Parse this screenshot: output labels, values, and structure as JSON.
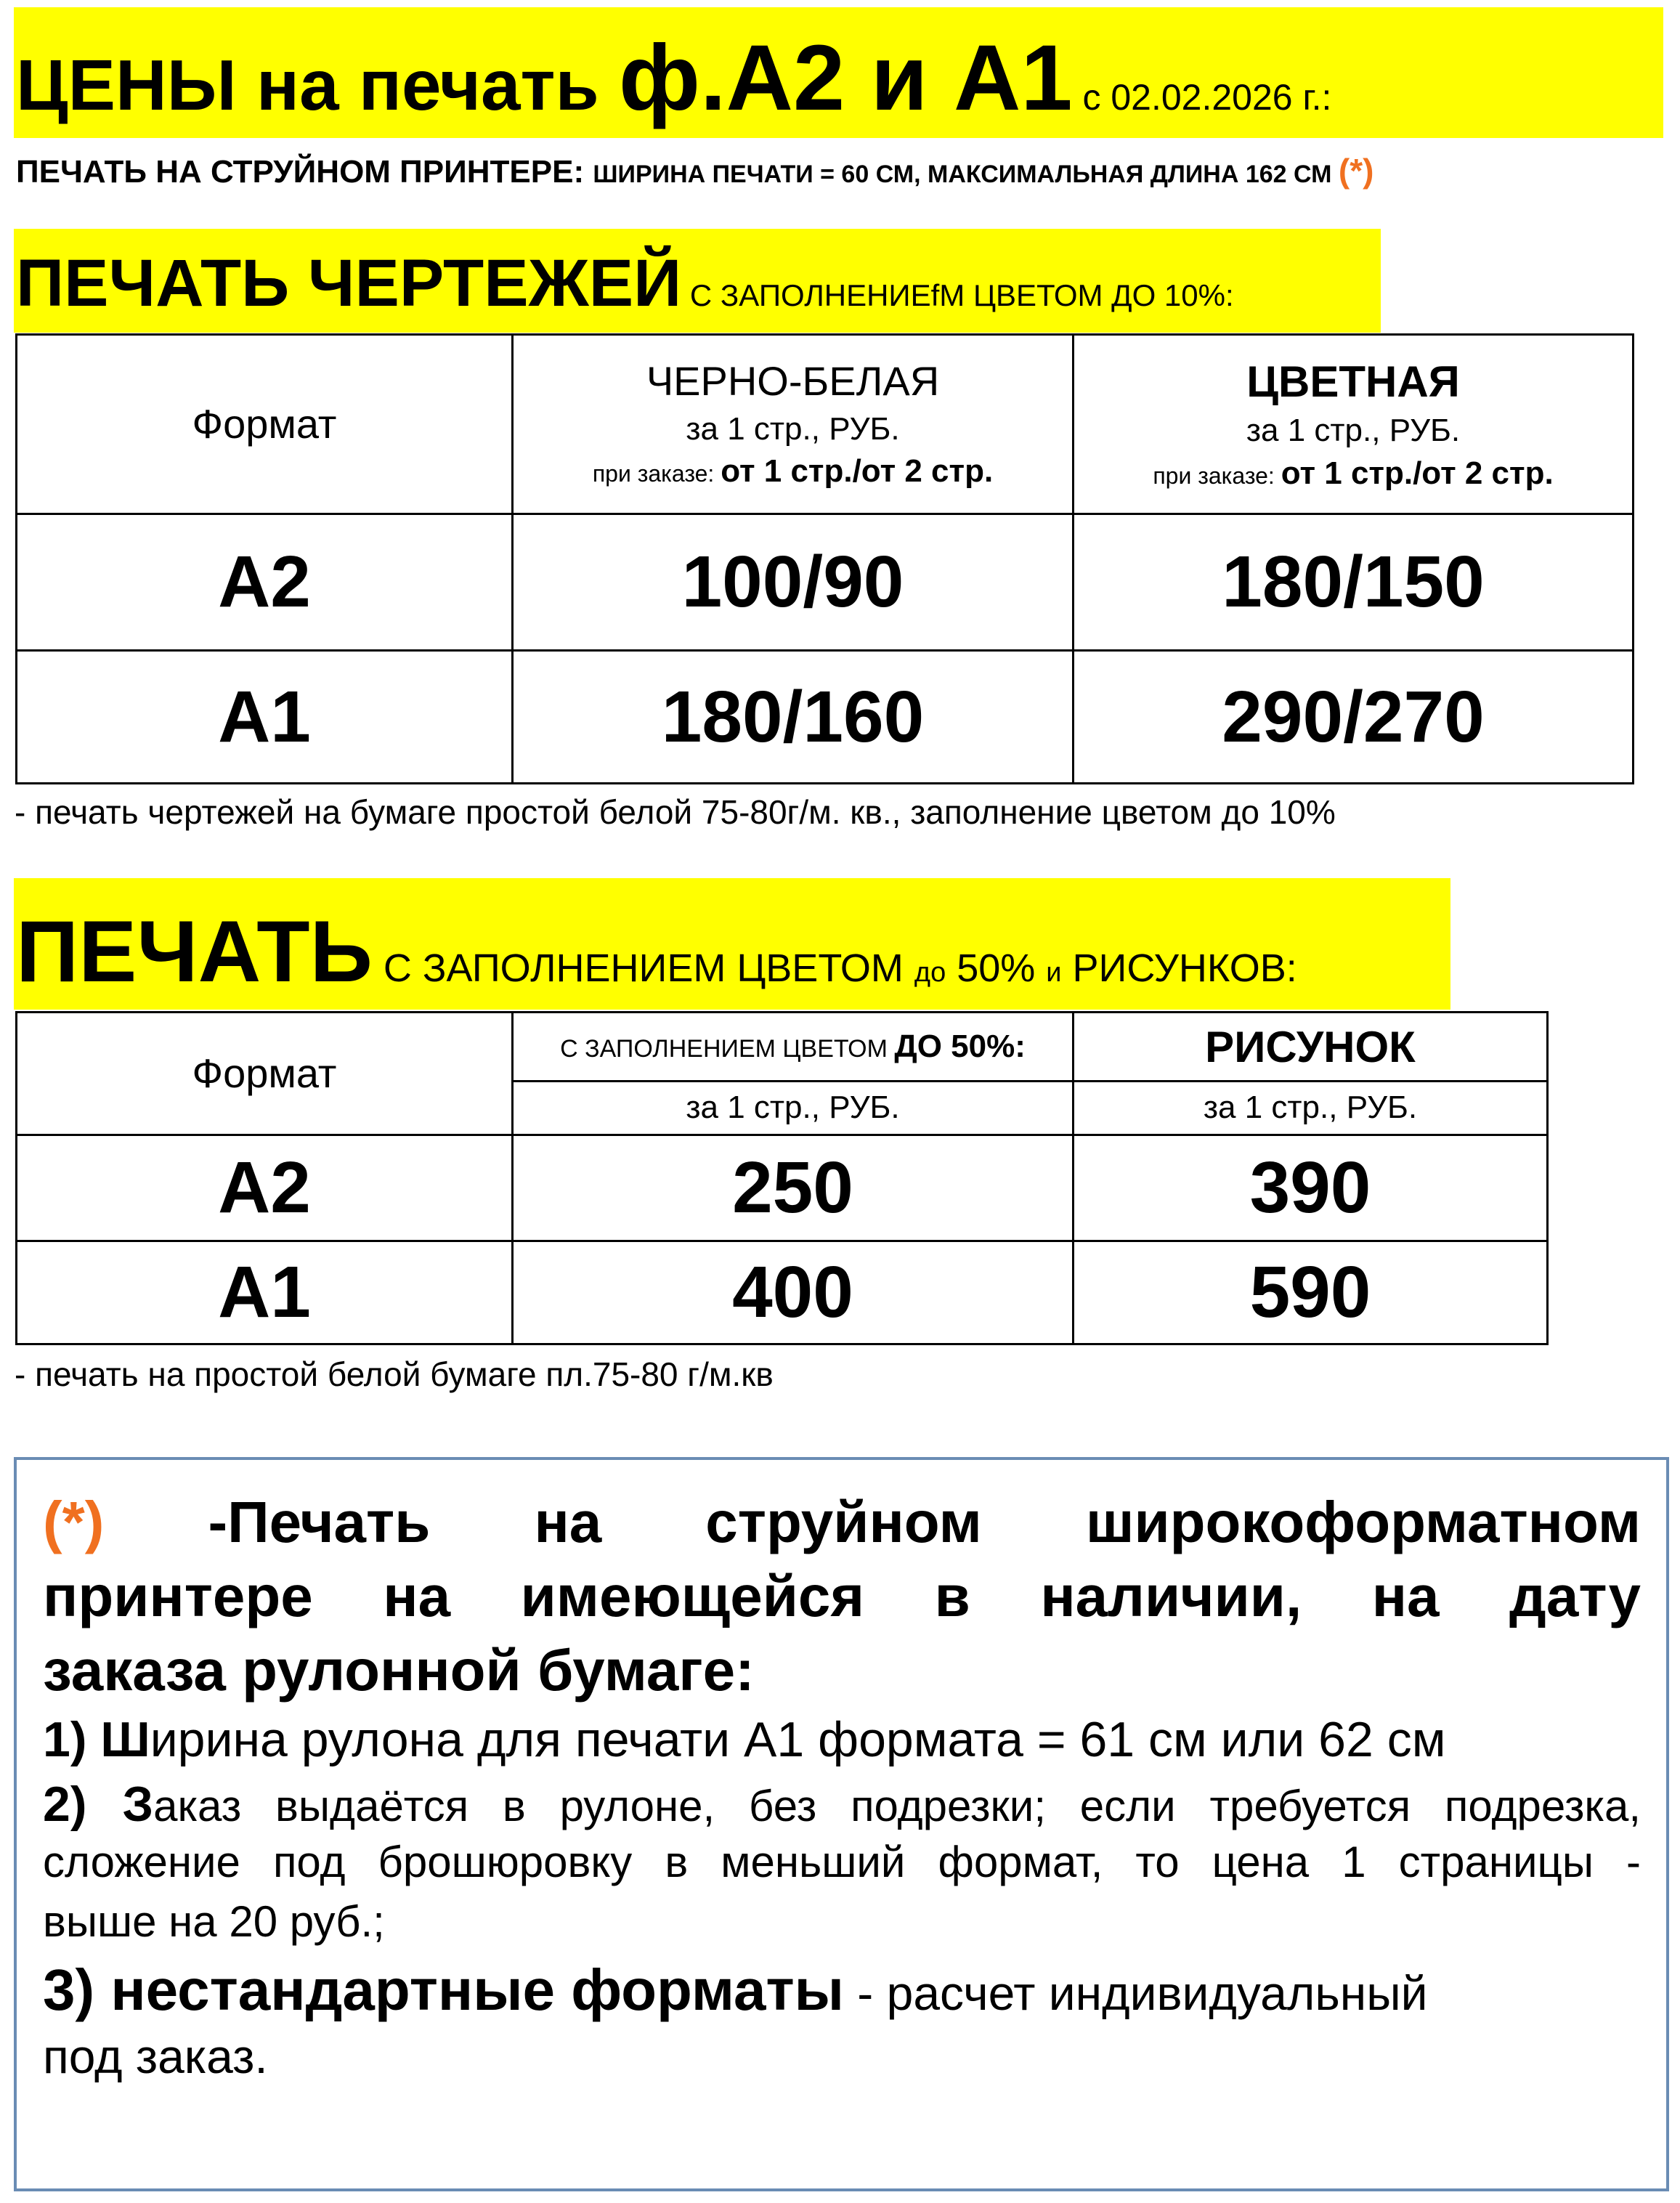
{
  "header": {
    "title_part1": "ЦЕНЫ на печать ",
    "title_part2": "ф.А2 и А1",
    "title_date": " с 02.02.2026 г.:",
    "subtitle_bold": "ПЕЧАТЬ НА СТРУЙНОМ ПРИНТЕРЕ: ",
    "subtitle_rest": "ШИРИНА ПЕЧАТИ = 60 СМ, МАКСИМАЛЬНАЯ ДЛИНА 162 СМ ",
    "subtitle_mark": "(*)"
  },
  "colors": {
    "highlight": "#ffff00",
    "accent": "#f07020",
    "box_border": "#6a8cb4"
  },
  "section1": {
    "heading": "ПЕЧАТЬ ЧЕРТЕЖЕЙ",
    "heading_sub": " С ЗАПОЛНЕНИЕfM ЦВЕТОМ ДО 10%:",
    "table": {
      "col_format": "Формат",
      "col_bw": {
        "title": "ЧЕРНО-БЕЛАЯ",
        "unit": "за 1 стр., РУБ.",
        "order_label": "при заказе: ",
        "order_value": "от 1 стр./от 2 стр."
      },
      "col_color": {
        "title": "ЦВЕТНАЯ",
        "unit": "за 1 стр., РУБ.",
        "order_label": "при заказе: ",
        "order_value": "от 1 стр./от 2 стр."
      },
      "rows": [
        {
          "format": "А2",
          "bw": "100/90",
          "color": "180/150"
        },
        {
          "format": "А1",
          "bw": "180/160",
          "color": "290/270"
        }
      ]
    },
    "note": "- печать чертежей на бумаге простой белой 75-80г/м. кв., заполнение цветом до 10%"
  },
  "section2": {
    "heading": "ПЕЧАТЬ",
    "heading_sub1": " С ЗАПОЛНЕНИЕМ ЦВЕТОМ ",
    "heading_sub2": "до",
    "heading_sub3": " 50% ",
    "heading_sub4": "и",
    "heading_sub5": " РИСУНКОВ:",
    "table": {
      "col_format": "Формат",
      "col_fill": {
        "title_small": "С ЗАПОЛНЕНИЕМ ЦВЕТОМ ",
        "title_bold": "ДО 50%:",
        "unit": "за 1 стр., РУБ."
      },
      "col_picture": {
        "title": "РИСУНОК",
        "unit": "за 1 стр., РУБ."
      },
      "rows": [
        {
          "format": "А2",
          "fill": "250",
          "picture": "390"
        },
        {
          "format": "А1",
          "fill": "400",
          "picture": "590"
        }
      ]
    },
    "note": "- печать на простой белой бумаге пл.75-80 г/м.кв"
  },
  "footnote": {
    "mark": "(*)",
    "line1": " -Печать на струйном широкоформатном",
    "line2": "принтере на имеющейся в наличии, на дату",
    "line3": "заказа рулонной бумаге:",
    "item1_num": "1)  Ш",
    "item1_text": "ирина рулона для печати А1 формата = 61 см или 62 см",
    "item2_num": "2)  З",
    "item2_text": "аказ выдаётся в рулоне, без подрезки; если требуется подрезка,",
    "item2_line2": "сложение под брошюровку в меньший формат, то цена 1 страницы -",
    "item2_line3": "выше на 20 руб.;",
    "item3_bold": "3) нестандартные форматы",
    "item3_text": " - расчет индивидуальный",
    "item3_line2": "под заказ."
  }
}
